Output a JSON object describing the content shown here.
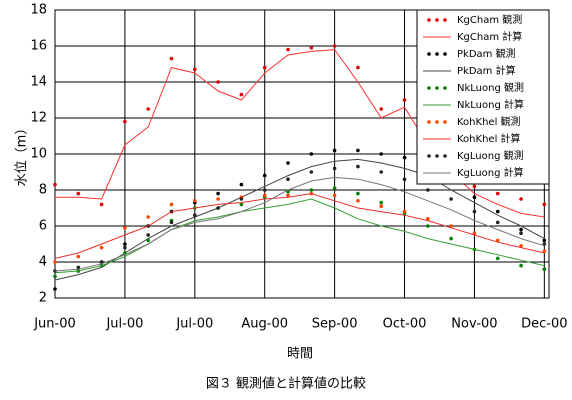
{
  "chart_data": {
    "type": "line",
    "y_label": "水位（m）",
    "x_label": "時間",
    "caption": "図３ 観測値と計算値の比較",
    "x": [
      0,
      10,
      20,
      30,
      40,
      50,
      60,
      70,
      80,
      90,
      100,
      110,
      120,
      130,
      140,
      150,
      160,
      170,
      180,
      190,
      200,
      210
    ],
    "xlim": [
      0,
      212
    ],
    "xticks": [
      {
        "value": 0,
        "label": "Jun-00"
      },
      {
        "value": 30,
        "label": "Jul-00"
      },
      {
        "value": 60,
        "label": "Jul-00"
      },
      {
        "value": 90,
        "label": "Aug-00"
      },
      {
        "value": 120,
        "label": "Sep-00"
      },
      {
        "value": 150,
        "label": "Oct-00"
      },
      {
        "value": 180,
        "label": "Nov-00"
      },
      {
        "value": 210,
        "label": "Dec-00"
      }
    ],
    "ylim": [
      2,
      18
    ],
    "yticks": [
      2,
      4,
      6,
      8,
      10,
      12,
      14,
      16,
      18
    ],
    "grid": true,
    "legend": "top-right",
    "series": [
      {
        "name": "KgCham 観測",
        "style": "dots",
        "color": "#e00000",
        "values": [
          8.3,
          7.8,
          7.2,
          11.8,
          12.5,
          15.3,
          14.7,
          14.0,
          13.3,
          14.8,
          15.8,
          15.9,
          16.0,
          14.8,
          12.5,
          13.0,
          11.0,
          9.3,
          8.2,
          7.8,
          7.5,
          7.2
        ]
      },
      {
        "name": "KgCham 計算",
        "style": "line",
        "color": "#ff3030",
        "values": [
          7.6,
          7.6,
          7.5,
          10.5,
          11.5,
          14.8,
          14.5,
          13.5,
          13.0,
          14.5,
          15.5,
          15.7,
          15.8,
          14.0,
          12.0,
          12.6,
          10.5,
          9.0,
          7.8,
          7.2,
          6.7,
          6.5
        ]
      },
      {
        "name": "PkDam 観測",
        "style": "dots",
        "color": "#000000",
        "values": [
          2.5,
          3.5,
          4.0,
          5.0,
          6.0,
          6.8,
          7.3,
          7.8,
          8.3,
          8.8,
          9.5,
          10.0,
          10.2,
          10.2,
          10.0,
          9.8,
          9.3,
          8.6,
          7.6,
          6.8,
          5.8,
          5.2
        ]
      },
      {
        "name": "PkDam 計算",
        "style": "line",
        "color": "#444444",
        "values": [
          3.0,
          3.3,
          3.7,
          4.5,
          5.3,
          6.0,
          6.5,
          7.0,
          7.6,
          8.2,
          8.8,
          9.3,
          9.6,
          9.7,
          9.5,
          9.2,
          8.8,
          8.0,
          7.3,
          6.6,
          6.0,
          5.3
        ]
      },
      {
        "name": "NkLuong 観測",
        "style": "dots",
        "color": "#008000",
        "values": [
          3.2,
          3.5,
          3.8,
          4.5,
          5.2,
          6.3,
          7.0,
          7.0,
          7.2,
          7.6,
          7.9,
          8.0,
          8.1,
          7.8,
          7.3,
          6.7,
          6.0,
          5.3,
          4.7,
          4.2,
          3.8,
          3.6
        ]
      },
      {
        "name": "NkLuong 計算",
        "style": "line",
        "color": "#33a033",
        "values": [
          3.4,
          3.5,
          3.8,
          4.3,
          5.0,
          5.8,
          6.3,
          6.5,
          6.8,
          7.0,
          7.2,
          7.5,
          7.0,
          6.4,
          6.0,
          5.7,
          5.3,
          5.0,
          4.7,
          4.4,
          4.1,
          3.8
        ]
      },
      {
        "name": "KohKhel 観測",
        "style": "dots",
        "color": "#ff4400",
        "values": [
          4.0,
          4.3,
          4.8,
          5.9,
          6.5,
          7.2,
          7.4,
          7.5,
          7.6,
          7.7,
          7.7,
          7.8,
          7.7,
          7.4,
          7.1,
          6.8,
          6.4,
          6.0,
          5.6,
          5.2,
          4.9,
          4.6
        ]
      },
      {
        "name": "KohKhel 計算",
        "style": "line",
        "color": "#e83030",
        "values": [
          4.2,
          4.5,
          5.0,
          5.5,
          6.0,
          6.8,
          7.0,
          7.2,
          7.3,
          7.5,
          7.6,
          7.8,
          7.4,
          7.0,
          6.8,
          6.6,
          6.3,
          5.9,
          5.5,
          5.1,
          4.8,
          4.5
        ]
      },
      {
        "name": "KgLuong 観測",
        "style": "dots",
        "color": "#222222",
        "values": [
          3.5,
          3.7,
          4.0,
          4.8,
          5.5,
          6.2,
          6.6,
          7.0,
          7.5,
          8.0,
          8.6,
          9.0,
          9.2,
          9.3,
          9.0,
          8.6,
          8.0,
          7.5,
          6.8,
          6.2,
          5.6,
          5.0
        ]
      },
      {
        "name": "KgLuong 計算",
        "style": "line",
        "color": "#777777",
        "values": [
          3.5,
          3.6,
          3.9,
          4.4,
          5.0,
          5.8,
          6.2,
          6.4,
          6.8,
          7.3,
          8.0,
          8.5,
          8.7,
          8.6,
          8.3,
          7.9,
          7.4,
          6.9,
          6.3,
          5.8,
          5.3,
          4.9
        ]
      }
    ]
  }
}
